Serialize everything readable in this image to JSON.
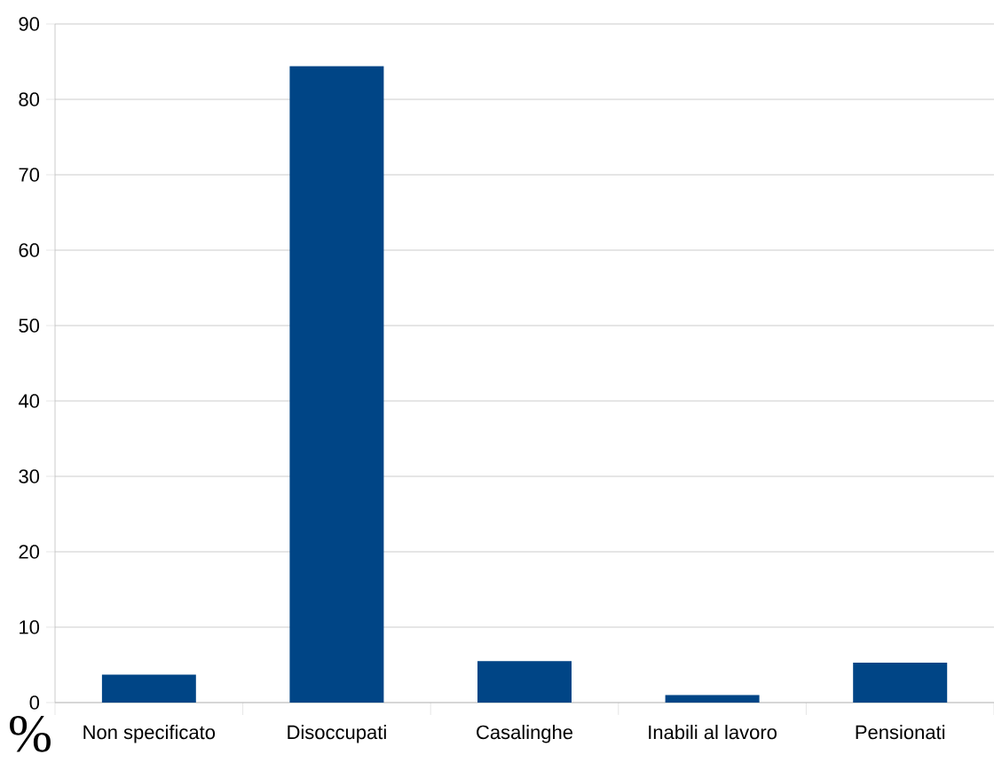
{
  "chart_data": {
    "type": "bar",
    "ylabel": "%",
    "categories": [
      "Non specificato",
      "Disoccupati",
      "Casalinghe",
      "Inabili al lavoro",
      "Pensionati"
    ],
    "values": [
      3.7,
      84.4,
      5.5,
      1.0,
      5.3
    ],
    "color": "#004586",
    "ylim": [
      0,
      90
    ],
    "yticks": [
      0,
      10,
      20,
      30,
      40,
      50,
      60,
      70,
      80,
      90
    ],
    "grid": "y"
  }
}
